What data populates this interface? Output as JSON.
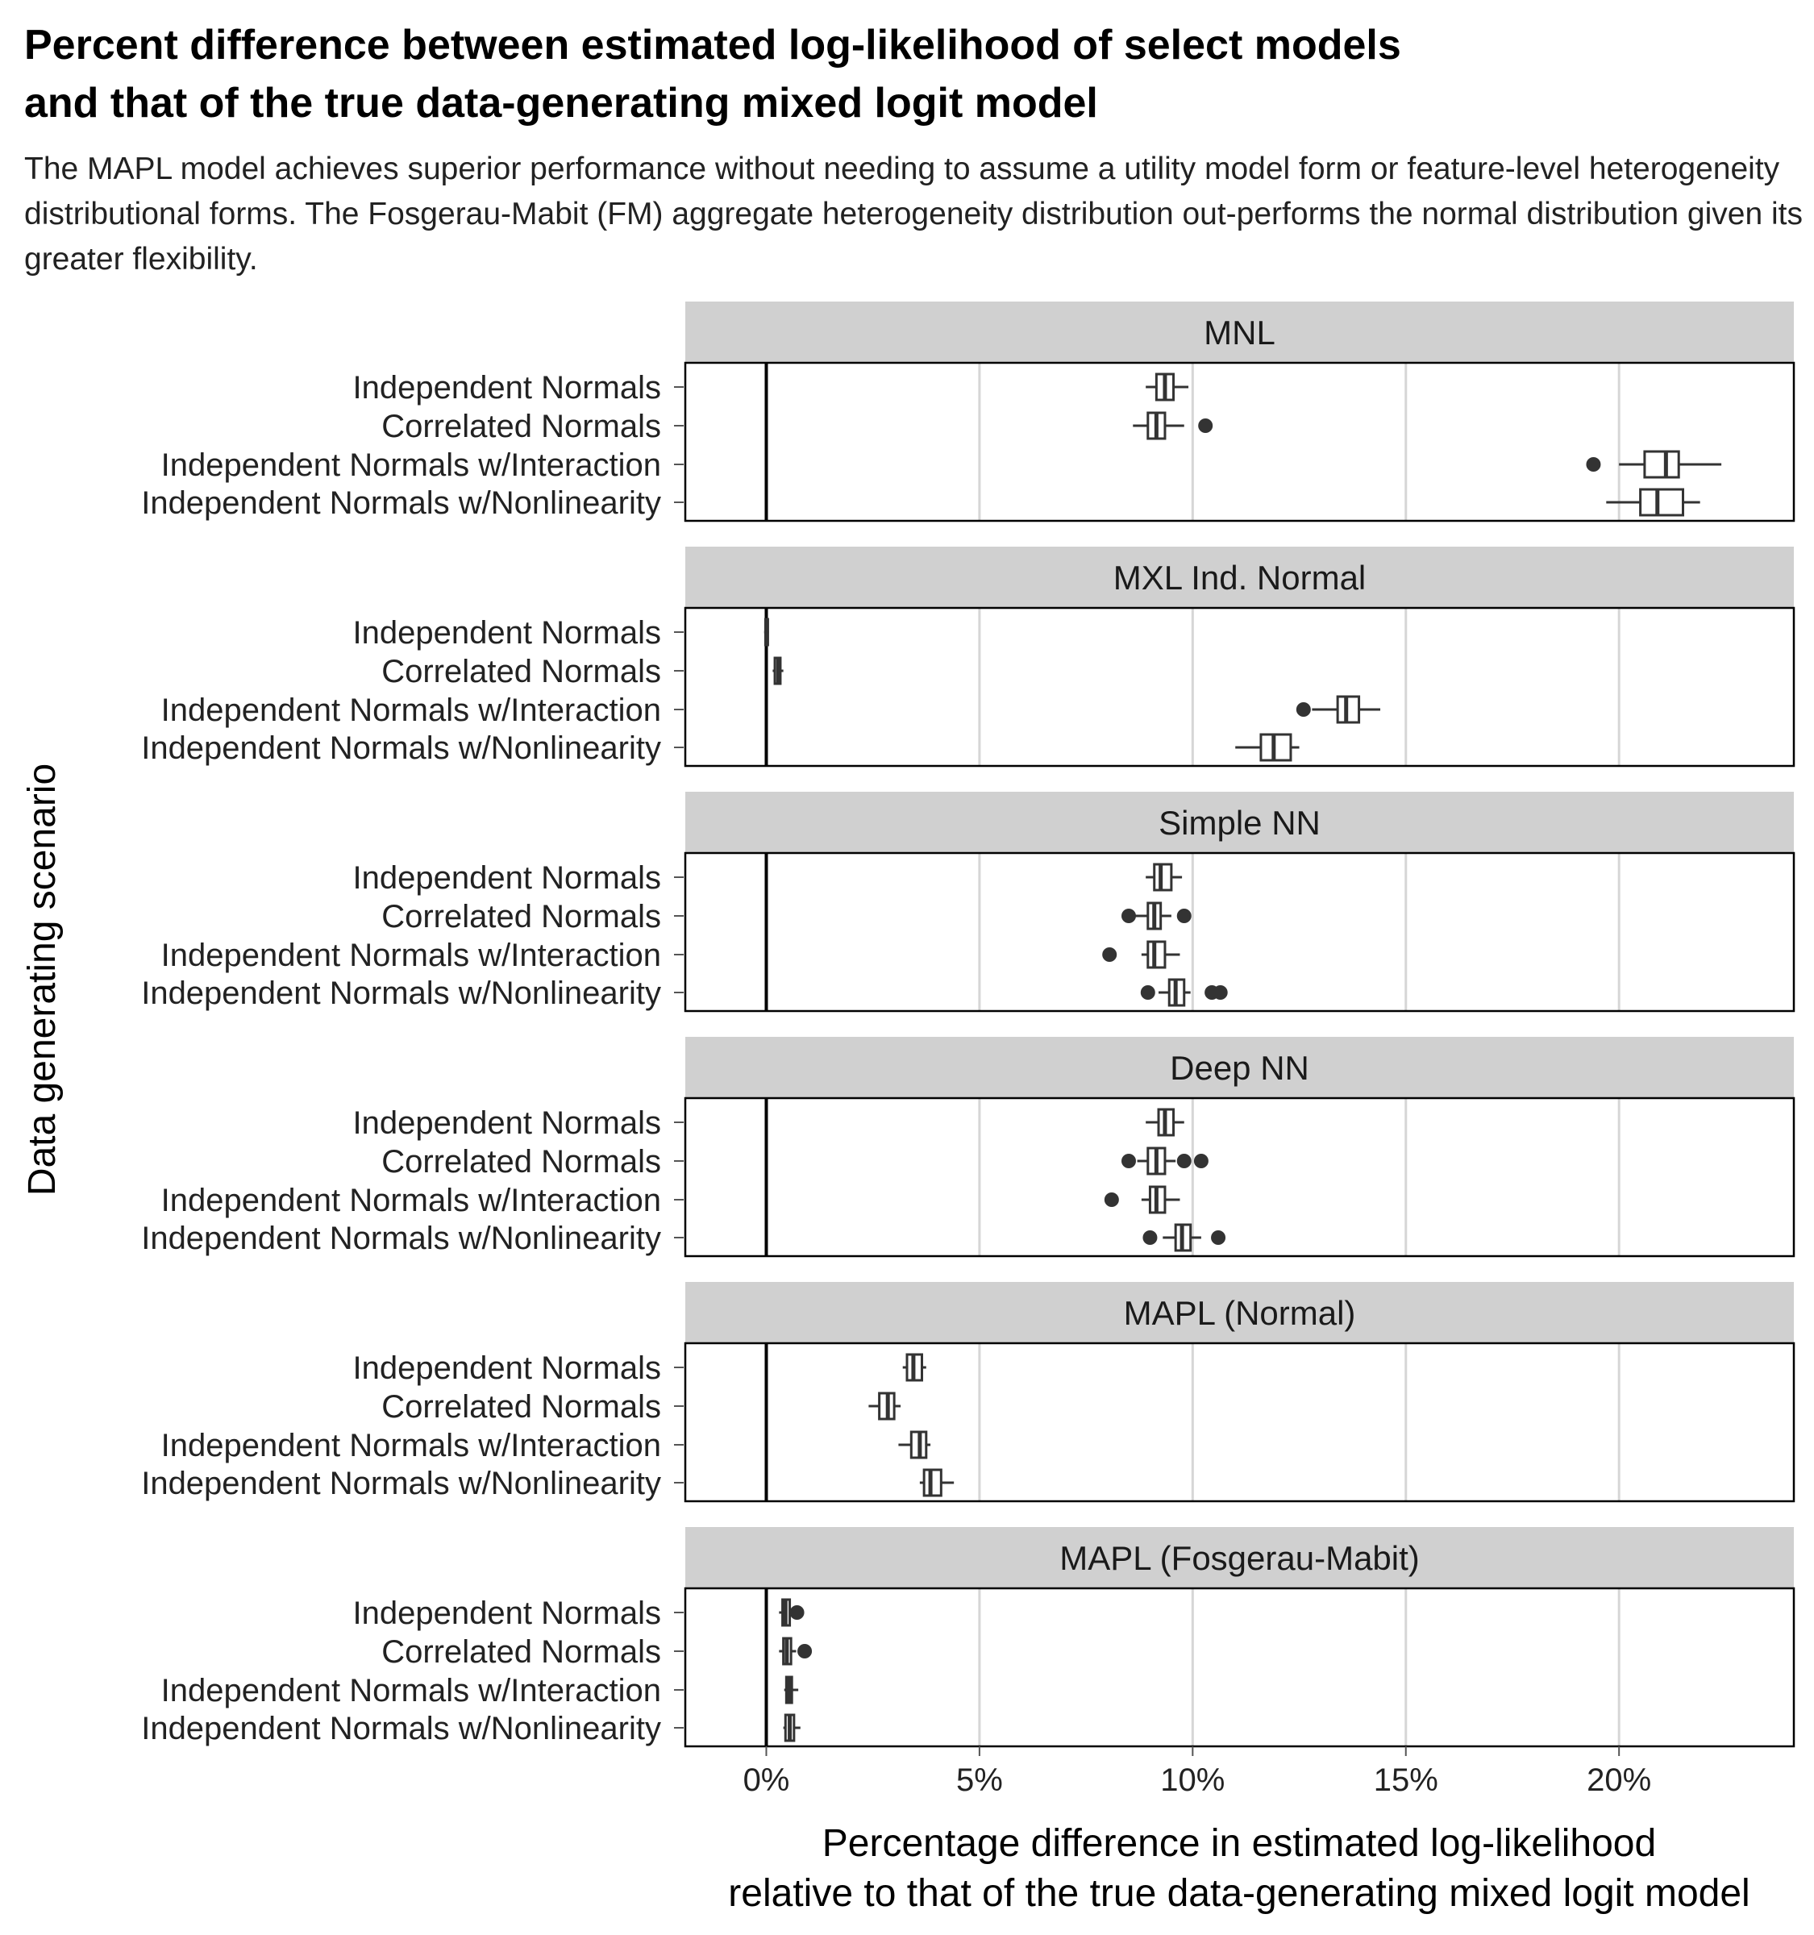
{
  "chart_data": {
    "type": "boxplot",
    "title": "Percent difference between estimated log-likelihood of select models and that of the true data-generating mixed logit model",
    "title_lines": [
      "Percent difference between estimated log-likelihood of select models",
      "and that of the true data-generating mixed logit model"
    ],
    "subtitle": "The MAPL model achieves superior performance without needing to assume a utility model form or feature-level heterogeneity distributional forms. The Fosgerau-Mabit (FM) aggregate heterogeneity distribution out-performs the normal distribution given its greater flexibility.",
    "xlabel_lines": [
      "Percentage difference in estimated log-likelihood",
      "relative to that of the true data-generating mixed logit model"
    ],
    "ylabel": "Data generating scenario",
    "xlim": [
      -1.9,
      24.1
    ],
    "x_ticks": [
      0,
      5,
      10,
      15,
      20
    ],
    "x_tick_labels": [
      "0%",
      "5%",
      "10%",
      "15%",
      "20%"
    ],
    "grid": true,
    "reference_line_x": 0,
    "categories": [
      "Independent Normals",
      "Correlated Normals",
      "Independent Normals w/Interaction",
      "Independent Normals w/Nonlinearity"
    ],
    "panels": [
      {
        "name": "MNL",
        "boxes": [
          {
            "min": 8.9,
            "q1": 9.15,
            "median": 9.35,
            "q3": 9.55,
            "max": 9.9,
            "outliers": []
          },
          {
            "min": 8.6,
            "q1": 8.95,
            "median": 9.15,
            "q3": 9.35,
            "max": 9.8,
            "outliers": [
              10.3
            ]
          },
          {
            "min": 20.0,
            "q1": 20.6,
            "median": 21.1,
            "q3": 21.4,
            "max": 22.4,
            "outliers": [
              19.4
            ]
          },
          {
            "min": 19.7,
            "q1": 20.5,
            "median": 20.9,
            "q3": 21.5,
            "max": 21.9,
            "outliers": []
          }
        ]
      },
      {
        "name": "MXL Ind. Normal",
        "boxes": [
          {
            "min": -0.05,
            "q1": -0.02,
            "median": 0.0,
            "q3": 0.03,
            "max": 0.06,
            "outliers": []
          },
          {
            "min": 0.15,
            "q1": 0.2,
            "median": 0.28,
            "q3": 0.33,
            "max": 0.4,
            "outliers": []
          },
          {
            "min": 12.8,
            "q1": 13.4,
            "median": 13.6,
            "q3": 13.9,
            "max": 14.4,
            "outliers": [
              12.6
            ]
          },
          {
            "min": 11.0,
            "q1": 11.6,
            "median": 11.9,
            "q3": 12.3,
            "max": 12.5,
            "outliers": []
          }
        ]
      },
      {
        "name": "Simple NN",
        "boxes": [
          {
            "min": 8.9,
            "q1": 9.1,
            "median": 9.25,
            "q3": 9.5,
            "max": 9.75,
            "outliers": []
          },
          {
            "min": 8.6,
            "q1": 8.95,
            "median": 9.1,
            "q3": 9.25,
            "max": 9.5,
            "outliers": [
              8.5,
              9.8
            ]
          },
          {
            "min": 8.8,
            "q1": 8.95,
            "median": 9.1,
            "q3": 9.35,
            "max": 9.7,
            "outliers": [
              8.05
            ]
          },
          {
            "min": 9.2,
            "q1": 9.45,
            "median": 9.6,
            "q3": 9.8,
            "max": 9.95,
            "outliers": [
              8.95,
              10.45,
              10.65
            ]
          }
        ]
      },
      {
        "name": "Deep NN",
        "boxes": [
          {
            "min": 8.9,
            "q1": 9.2,
            "median": 9.35,
            "q3": 9.55,
            "max": 9.8,
            "outliers": []
          },
          {
            "min": 8.7,
            "q1": 8.95,
            "median": 9.15,
            "q3": 9.35,
            "max": 9.6,
            "outliers": [
              8.5,
              9.8,
              10.2
            ]
          },
          {
            "min": 8.8,
            "q1": 9.0,
            "median": 9.15,
            "q3": 9.35,
            "max": 9.7,
            "outliers": [
              8.1
            ]
          },
          {
            "min": 9.3,
            "q1": 9.6,
            "median": 9.75,
            "q3": 9.95,
            "max": 10.2,
            "outliers": [
              9.0,
              10.6
            ]
          }
        ]
      },
      {
        "name": "MAPL (Normal)",
        "boxes": [
          {
            "min": 3.2,
            "q1": 3.3,
            "median": 3.45,
            "q3": 3.65,
            "max": 3.75,
            "outliers": []
          },
          {
            "min": 2.4,
            "q1": 2.65,
            "median": 2.85,
            "q3": 3.0,
            "max": 3.15,
            "outliers": []
          },
          {
            "min": 3.1,
            "q1": 3.4,
            "median": 3.6,
            "q3": 3.75,
            "max": 3.85,
            "outliers": []
          },
          {
            "min": 3.6,
            "q1": 3.7,
            "median": 3.85,
            "q3": 4.1,
            "max": 4.4,
            "outliers": []
          }
        ]
      },
      {
        "name": "MAPL (Fosgerau-Mabit)",
        "boxes": [
          {
            "min": 0.3,
            "q1": 0.38,
            "median": 0.45,
            "q3": 0.55,
            "max": 0.62,
            "outliers": [
              0.72
            ]
          },
          {
            "min": 0.3,
            "q1": 0.4,
            "median": 0.48,
            "q3": 0.58,
            "max": 0.7,
            "outliers": [
              0.9
            ]
          },
          {
            "min": 0.42,
            "q1": 0.47,
            "median": 0.53,
            "q3": 0.6,
            "max": 0.75,
            "outliers": []
          },
          {
            "min": 0.4,
            "q1": 0.45,
            "median": 0.55,
            "q3": 0.65,
            "max": 0.8,
            "outliers": []
          }
        ]
      }
    ]
  }
}
